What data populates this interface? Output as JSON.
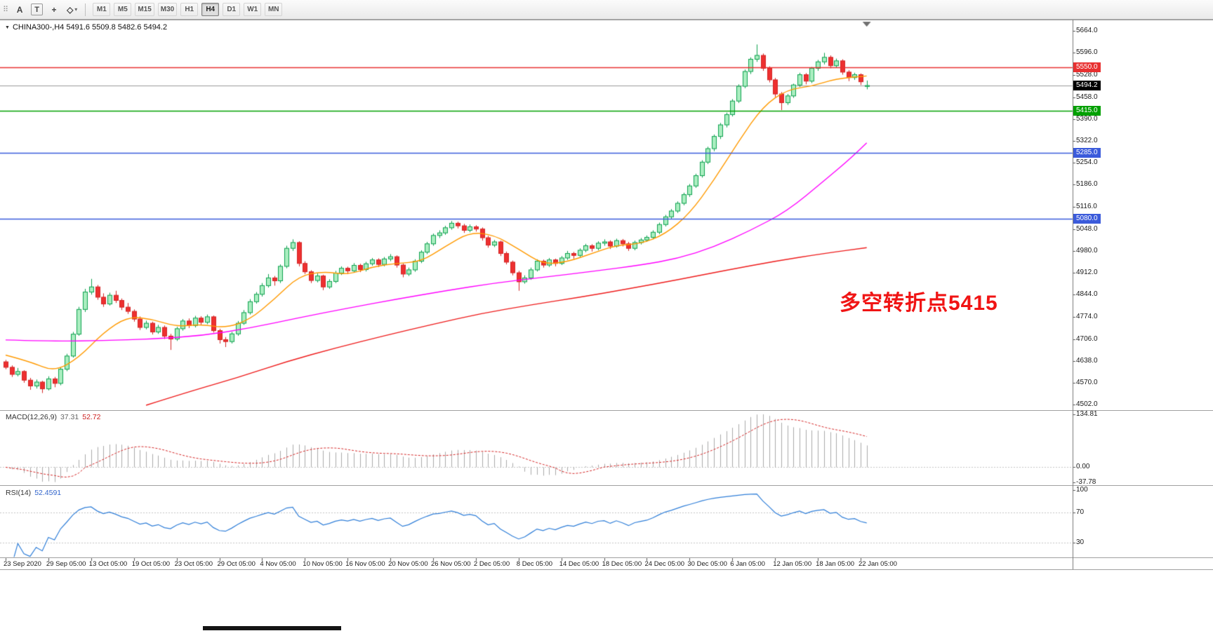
{
  "toolbar": {
    "handle_icon": "⠿",
    "buttons": [
      {
        "label": "A"
      },
      {
        "label": "T"
      }
    ],
    "crosshair_icon": "+",
    "shapes_icon": "◇",
    "caret_icon": "▾",
    "timeframes": [
      "M1",
      "M5",
      "M15",
      "M30",
      "H1",
      "H4",
      "D1",
      "W1",
      "MN"
    ],
    "active_timeframe": "H4"
  },
  "chart": {
    "collapse_icon": "▼",
    "symbol_info": "CHINA300-,H4  5491.6 5509.8 5482.6 5494.2",
    "annotation": "多空转折点5415",
    "annotation_color": "#f01414"
  },
  "indicators": {
    "macd": {
      "label": "MACD(12,26,9)",
      "value_hist": "37.31",
      "value_signal": "52.72",
      "axis": [
        "134.81",
        "0.00",
        "-37.78"
      ],
      "axis_values": [
        134.81,
        0,
        -37.78
      ],
      "fast": 12,
      "slow": 26,
      "signal": 9
    },
    "rsi": {
      "label": "RSI(14)",
      "value": "52.4591",
      "axis": [
        "100",
        "70",
        "30"
      ],
      "axis_values": [
        100,
        70,
        30
      ],
      "levels": [
        70,
        30
      ],
      "period": 14
    }
  },
  "chart_data": {
    "type": "candlestick",
    "symbol": "CHINA300-",
    "timeframe": "H4",
    "title": "CHINA300-,H4",
    "last_bar": {
      "open": 5491.6,
      "high": 5509.8,
      "low": 5482.6,
      "close": 5494.2
    },
    "price_ticks": [
      "5664.0",
      "5596.0",
      "5528.0",
      "5458.0",
      "5390.0",
      "5322.0",
      "5254.0",
      "5186.0",
      "5116.0",
      "5048.0",
      "4980.0",
      "4912.0",
      "4844.0",
      "4774.0",
      "4706.0",
      "4638.0",
      "4570.0",
      "4502.0"
    ],
    "price_tick_values": [
      5664,
      5596,
      5528,
      5458,
      5390,
      5322,
      5254,
      5186,
      5116,
      5048,
      4980,
      4912,
      4844,
      4774,
      4706,
      4638,
      4570,
      4502
    ],
    "ylim": [
      4488,
      5696
    ],
    "hlines": [
      {
        "price": 5550.0,
        "label": "5550.0",
        "color": "#e83030",
        "type": "resistance"
      },
      {
        "price": 5494.2,
        "label": "5494.2",
        "color": "#000000",
        "type": "bid"
      },
      {
        "price": 5415.0,
        "label": "5415.0",
        "color": "#00a000",
        "type": "pivot"
      },
      {
        "price": 5285.0,
        "label": "5285.0",
        "color": "#3b5bdb",
        "type": "support"
      },
      {
        "price": 5080.0,
        "label": "5080.0",
        "color": "#3b5bdb",
        "type": "support"
      }
    ],
    "time_labels": [
      "23 Sep 2020",
      "29 Sep 05:00",
      "13 Oct 05:00",
      "19 Oct 05:00",
      "23 Oct 05:00",
      "29 Oct 05:00",
      "4 Nov 05:00",
      "10 Nov 05:00",
      "16 Nov 05:00",
      "20 Nov 05:00",
      "26 Nov 05:00",
      "2 Dec 05:00",
      "8 Dec 05:00",
      "14 Dec 05:00",
      "18 Dec 05:00",
      "24 Dec 05:00",
      "30 Dec 05:00",
      "6 Jan 05:00",
      "12 Jan 05:00",
      "18 Jan 05:00",
      "22 Jan 05:00"
    ],
    "label_every_n_bars": 7,
    "moving_averages": [
      {
        "name": "ma-fast",
        "color": "#ff9a00",
        "points": [
          [
            0,
            4656
          ],
          [
            4,
            4636
          ],
          [
            8,
            4604
          ],
          [
            12,
            4648
          ],
          [
            16,
            4726
          ],
          [
            20,
            4776
          ],
          [
            24,
            4768
          ],
          [
            28,
            4744
          ],
          [
            32,
            4752
          ],
          [
            36,
            4740
          ],
          [
            40,
            4766
          ],
          [
            44,
            4830
          ],
          [
            48,
            4902
          ],
          [
            52,
            4916
          ],
          [
            56,
            4906
          ],
          [
            60,
            4930
          ],
          [
            64,
            4942
          ],
          [
            68,
            4946
          ],
          [
            72,
            4994
          ],
          [
            76,
            5038
          ],
          [
            80,
            5030
          ],
          [
            84,
            4986
          ],
          [
            88,
            4938
          ],
          [
            92,
            4946
          ],
          [
            96,
            4972
          ],
          [
            100,
            4998
          ],
          [
            104,
            5002
          ],
          [
            108,
            5032
          ],
          [
            112,
            5096
          ],
          [
            116,
            5200
          ],
          [
            120,
            5320
          ],
          [
            124,
            5430
          ],
          [
            128,
            5482
          ],
          [
            132,
            5492
          ],
          [
            136,
            5516
          ],
          [
            141,
            5524
          ]
        ]
      },
      {
        "name": "ma-medium",
        "color": "#ff00ff",
        "points": [
          [
            0,
            4703
          ],
          [
            8,
            4699
          ],
          [
            16,
            4701
          ],
          [
            24,
            4706
          ],
          [
            32,
            4716
          ],
          [
            40,
            4740
          ],
          [
            48,
            4772
          ],
          [
            56,
            4802
          ],
          [
            64,
            4830
          ],
          [
            72,
            4856
          ],
          [
            80,
            4880
          ],
          [
            88,
            4898
          ],
          [
            96,
            4916
          ],
          [
            104,
            4936
          ],
          [
            110,
            4956
          ],
          [
            116,
            4992
          ],
          [
            122,
            5044
          ],
          [
            128,
            5104
          ],
          [
            134,
            5198
          ],
          [
            138,
            5262
          ],
          [
            141,
            5316
          ]
        ]
      },
      {
        "name": "ma-slow",
        "color": "#ee1c1c",
        "points": [
          [
            23,
            4500
          ],
          [
            30,
            4542
          ],
          [
            38,
            4586
          ],
          [
            46,
            4636
          ],
          [
            54,
            4678
          ],
          [
            62,
            4716
          ],
          [
            70,
            4752
          ],
          [
            78,
            4786
          ],
          [
            86,
            4812
          ],
          [
            94,
            4836
          ],
          [
            102,
            4862
          ],
          [
            110,
            4890
          ],
          [
            118,
            4920
          ],
          [
            126,
            4948
          ],
          [
            134,
            4972
          ],
          [
            141,
            4990
          ]
        ]
      }
    ],
    "ohlc": [
      [
        4635,
        4641,
        4612,
        4618
      ],
      [
        4618,
        4624,
        4588,
        4596
      ],
      [
        4596,
        4616,
        4590,
        4605
      ],
      [
        4605,
        4609,
        4570,
        4578
      ],
      [
        4578,
        4585,
        4548,
        4560
      ],
      [
        4560,
        4580,
        4552,
        4572
      ],
      [
        4572,
        4576,
        4538,
        4551
      ],
      [
        4551,
        4590,
        4546,
        4582
      ],
      [
        4582,
        4588,
        4556,
        4568
      ],
      [
        4568,
        4618,
        4562,
        4612
      ],
      [
        4612,
        4660,
        4606,
        4653
      ],
      [
        4653,
        4728,
        4648,
        4721
      ],
      [
        4721,
        4806,
        4716,
        4798
      ],
      [
        4798,
        4862,
        4790,
        4852
      ],
      [
        4852,
        4893,
        4844,
        4868
      ],
      [
        4868,
        4874,
        4828,
        4836
      ],
      [
        4836,
        4848,
        4806,
        4815
      ],
      [
        4815,
        4850,
        4810,
        4842
      ],
      [
        4842,
        4856,
        4818,
        4826
      ],
      [
        4826,
        4832,
        4796,
        4805
      ],
      [
        4805,
        4818,
        4784,
        4792
      ],
      [
        4792,
        4798,
        4760,
        4768
      ],
      [
        4768,
        4776,
        4734,
        4742
      ],
      [
        4742,
        4763,
        4736,
        4755
      ],
      [
        4755,
        4760,
        4720,
        4728
      ],
      [
        4728,
        4750,
        4722,
        4742
      ],
      [
        4742,
        4748,
        4706,
        4715
      ],
      [
        4715,
        4722,
        4672,
        4706
      ],
      [
        4706,
        4744,
        4700,
        4738
      ],
      [
        4738,
        4768,
        4732,
        4762
      ],
      [
        4762,
        4770,
        4740,
        4748
      ],
      [
        4748,
        4778,
        4742,
        4771
      ],
      [
        4771,
        4777,
        4749,
        4758
      ],
      [
        4758,
        4782,
        4752,
        4775
      ],
      [
        4775,
        4779,
        4726,
        4732
      ],
      [
        4732,
        4738,
        4692,
        4704
      ],
      [
        4704,
        4712,
        4681,
        4698
      ],
      [
        4698,
        4728,
        4692,
        4722
      ],
      [
        4722,
        4762,
        4716,
        4755
      ],
      [
        4755,
        4796,
        4750,
        4788
      ],
      [
        4788,
        4830,
        4782,
        4822
      ],
      [
        4822,
        4852,
        4816,
        4845
      ],
      [
        4845,
        4880,
        4838,
        4872
      ],
      [
        4872,
        4908,
        4866,
        4896
      ],
      [
        4896,
        4902,
        4872,
        4887
      ],
      [
        4887,
        4938,
        4880,
        4932
      ],
      [
        4932,
        4996,
        4926,
        4988
      ],
      [
        4988,
        5016,
        4980,
        5006
      ],
      [
        5006,
        5010,
        4932,
        4941
      ],
      [
        4941,
        4948,
        4908,
        4915
      ],
      [
        4915,
        4920,
        4880,
        4888
      ],
      [
        4888,
        4910,
        4882,
        4902
      ],
      [
        4902,
        4906,
        4858,
        4868
      ],
      [
        4868,
        4892,
        4862,
        4885
      ],
      [
        4885,
        4918,
        4880,
        4911
      ],
      [
        4911,
        4932,
        4905,
        4926
      ],
      [
        4926,
        4931,
        4908,
        4918
      ],
      [
        4918,
        4942,
        4912,
        4935
      ],
      [
        4935,
        4940,
        4914,
        4922
      ],
      [
        4922,
        4946,
        4916,
        4940
      ],
      [
        4940,
        4958,
        4934,
        4952
      ],
      [
        4952,
        4957,
        4930,
        4938
      ],
      [
        4938,
        4961,
        4932,
        4955
      ],
      [
        4955,
        4970,
        4948,
        4962
      ],
      [
        4962,
        4966,
        4928,
        4936
      ],
      [
        4936,
        4941,
        4898,
        4908
      ],
      [
        4908,
        4928,
        4902,
        4921
      ],
      [
        4921,
        4954,
        4915,
        4948
      ],
      [
        4948,
        4982,
        4942,
        4976
      ],
      [
        4976,
        5008,
        4970,
        5002
      ],
      [
        5002,
        5034,
        4996,
        5028
      ],
      [
        5028,
        5044,
        5020,
        5036
      ],
      [
        5036,
        5058,
        5030,
        5052
      ],
      [
        5052,
        5073,
        5046,
        5066
      ],
      [
        5066,
        5071,
        5050,
        5058
      ],
      [
        5058,
        5064,
        5036,
        5044
      ],
      [
        5044,
        5062,
        5038,
        5055
      ],
      [
        5055,
        5060,
        5040,
        5048
      ],
      [
        5048,
        5053,
        5012,
        5021
      ],
      [
        5021,
        5027,
        4990,
        4998
      ],
      [
        4998,
        5014,
        4992,
        5008
      ],
      [
        5008,
        5012,
        4964,
        4972
      ],
      [
        4972,
        4978,
        4938,
        4945
      ],
      [
        4945,
        4950,
        4904,
        4912
      ],
      [
        4912,
        4918,
        4856,
        4884
      ],
      [
        4884,
        4904,
        4878,
        4896
      ],
      [
        4896,
        4928,
        4890,
        4921
      ],
      [
        4921,
        4954,
        4916,
        4948
      ],
      [
        4948,
        4953,
        4928,
        4936
      ],
      [
        4936,
        4958,
        4930,
        4952
      ],
      [
        4952,
        4956,
        4932,
        4941
      ],
      [
        4941,
        4964,
        4936,
        4958
      ],
      [
        4958,
        4980,
        4952,
        4972
      ],
      [
        4972,
        4977,
        4956,
        4966
      ],
      [
        4966,
        4988,
        4960,
        4982
      ],
      [
        4982,
        5002,
        4976,
        4996
      ],
      [
        4996,
        5001,
        4978,
        4988
      ],
      [
        4988,
        5010,
        4982,
        5004
      ],
      [
        5004,
        5016,
        4996,
        5008
      ],
      [
        5008,
        5013,
        4986,
        4995
      ],
      [
        4995,
        5018,
        4990,
        5012
      ],
      [
        5012,
        5017,
        4994,
        5002
      ],
      [
        5002,
        5008,
        4980,
        4988
      ],
      [
        4988,
        5012,
        4982,
        5006
      ],
      [
        5006,
        5020,
        5000,
        5014
      ],
      [
        5014,
        5028,
        5008,
        5022
      ],
      [
        5022,
        5044,
        5016,
        5038
      ],
      [
        5038,
        5068,
        5032,
        5062
      ],
      [
        5062,
        5092,
        5056,
        5086
      ],
      [
        5086,
        5110,
        5080,
        5104
      ],
      [
        5104,
        5134,
        5098,
        5128
      ],
      [
        5128,
        5161,
        5122,
        5155
      ],
      [
        5155,
        5188,
        5148,
        5182
      ],
      [
        5182,
        5220,
        5176,
        5214
      ],
      [
        5214,
        5262,
        5208,
        5256
      ],
      [
        5256,
        5304,
        5250,
        5298
      ],
      [
        5298,
        5342,
        5290,
        5336
      ],
      [
        5336,
        5378,
        5328,
        5372
      ],
      [
        5372,
        5410,
        5364,
        5404
      ],
      [
        5404,
        5452,
        5398,
        5446
      ],
      [
        5446,
        5498,
        5440,
        5492
      ],
      [
        5492,
        5544,
        5486,
        5538
      ],
      [
        5538,
        5582,
        5530,
        5576
      ],
      [
        5576,
        5622,
        5568,
        5588
      ],
      [
        5588,
        5594,
        5540,
        5548
      ],
      [
        5548,
        5554,
        5504,
        5512
      ],
      [
        5512,
        5518,
        5458,
        5468
      ],
      [
        5468,
        5474,
        5418,
        5441
      ],
      [
        5441,
        5468,
        5434,
        5462
      ],
      [
        5462,
        5500,
        5456,
        5496
      ],
      [
        5496,
        5534,
        5490,
        5528
      ],
      [
        5528,
        5533,
        5498,
        5508
      ],
      [
        5508,
        5552,
        5502,
        5548
      ],
      [
        5548,
        5574,
        5540,
        5568
      ],
      [
        5568,
        5596,
        5560,
        5582
      ],
      [
        5582,
        5588,
        5548,
        5556
      ],
      [
        5556,
        5578,
        5550,
        5571
      ],
      [
        5571,
        5576,
        5528,
        5536
      ],
      [
        5536,
        5542,
        5508,
        5519
      ],
      [
        5519,
        5534,
        5512,
        5528
      ],
      [
        5528,
        5532,
        5496,
        5506
      ],
      [
        5491.6,
        5509.8,
        5482.6,
        5494.2
      ]
    ],
    "colors": {
      "up_fill": "#aaeec0",
      "up_stroke": "#0da04e",
      "down_fill": "#ee3030",
      "down_stroke": "#d42424",
      "bid_line": "#9a9a9a",
      "macd_hist": "#aaaaaa",
      "macd_signal": "#d42424",
      "rsi_line": "#2f7ed8",
      "level_line": "#c4c4c4",
      "axis_tick": "#555555",
      "frame": "#a0a0a0"
    }
  }
}
